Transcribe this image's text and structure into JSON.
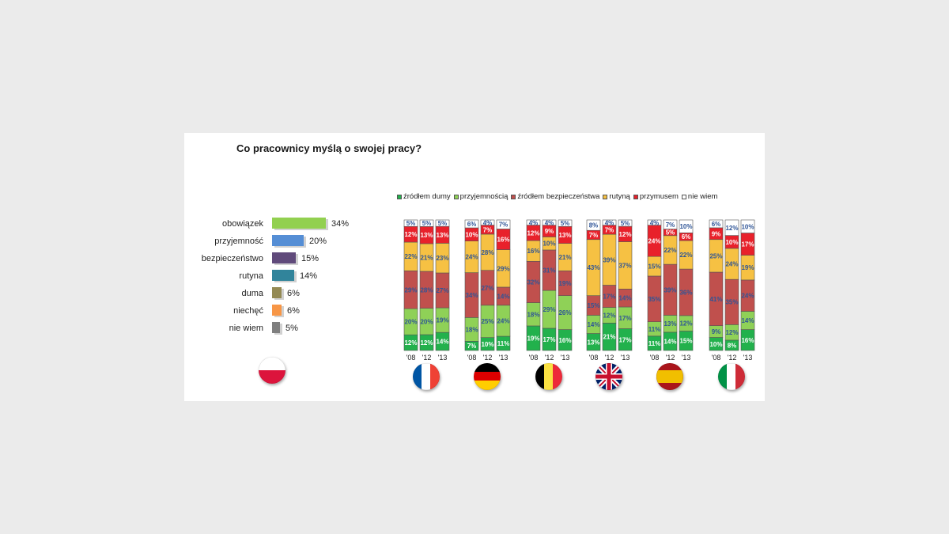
{
  "title": "Co pracownicy myślą o swojej pracy?",
  "legend": [
    {
      "label": "źródłem dumy",
      "color": "#22b14c"
    },
    {
      "label": "przyjemnością",
      "color": "#8fd157"
    },
    {
      "label": "źródłem bezpieczeństwa",
      "color": "#c0504d"
    },
    {
      "label": "rutyną",
      "color": "#f6c143"
    },
    {
      "label": "przymusem",
      "color": "#e8212b"
    },
    {
      "label": "nie wiem",
      "color": "#ffffff"
    }
  ],
  "chart_data": [
    {
      "type": "bar",
      "orientation": "horizontal",
      "country": "Polska",
      "categories": [
        "obowiązek",
        "przyjemność",
        "bezpieczeństwo",
        "rutyna",
        "duma",
        "niechęć",
        "nie wiem"
      ],
      "values": [
        34,
        20,
        15,
        14,
        6,
        6,
        5
      ],
      "value_labels": [
        "34%",
        "20%",
        "15%",
        "14%",
        "6%",
        "6%",
        "5%"
      ],
      "colors": [
        "#92d050",
        "#558ed5",
        "#604a7b",
        "#31849b",
        "#948a54",
        "#f79646",
        "#7f7f7f"
      ]
    },
    {
      "type": "bar",
      "stacked": true,
      "series_order": [
        "źródłem dumy",
        "przyjemnością",
        "źródłem bezpieczeństwa",
        "rutyną",
        "przymusem",
        "nie wiem"
      ],
      "year_labels": [
        "'08",
        "'12",
        "'13"
      ],
      "countries": [
        {
          "name": "Francja",
          "flag": "france",
          "bars": [
            [
              12,
              20,
              29,
              22,
              12,
              5
            ],
            [
              12,
              20,
              28,
              21,
              13,
              5
            ],
            [
              14,
              19,
              27,
              23,
              13,
              5
            ]
          ]
        },
        {
          "name": "Niemcy",
          "flag": "germany",
          "bars": [
            [
              7,
              18,
              34,
              24,
              10,
              6
            ],
            [
              10,
              25,
              27,
              28,
              7,
              4
            ],
            [
              11,
              24,
              14,
              29,
              16,
              7
            ]
          ]
        },
        {
          "name": "Belgia",
          "flag": "belgium",
          "bars": [
            [
              19,
              18,
              32,
              16,
              12,
              4
            ],
            [
              17,
              29,
              31,
              10,
              9,
              4
            ],
            [
              16,
              26,
              19,
              21,
              13,
              5
            ]
          ]
        },
        {
          "name": "Wielka Brytania",
          "flag": "uk",
          "bars": [
            [
              13,
              14,
              15,
              43,
              7,
              8
            ],
            [
              21,
              12,
              17,
              39,
              7,
              4
            ],
            [
              17,
              17,
              14,
              37,
              12,
              5
            ]
          ]
        },
        {
          "name": "Hiszpania",
          "flag": "spain",
          "bars": [
            [
              11,
              11,
              35,
              15,
              24,
              4
            ],
            [
              14,
              13,
              39,
              22,
              5,
              7
            ],
            [
              15,
              12,
              36,
              22,
              6,
              10
            ]
          ]
        },
        {
          "name": "Włochy",
          "flag": "italy",
          "bars": [
            [
              10,
              9,
              41,
              25,
              9,
              6
            ],
            [
              8,
              12,
              35,
              24,
              10,
              12
            ],
            [
              16,
              14,
              24,
              19,
              17,
              10
            ]
          ]
        }
      ]
    }
  ]
}
